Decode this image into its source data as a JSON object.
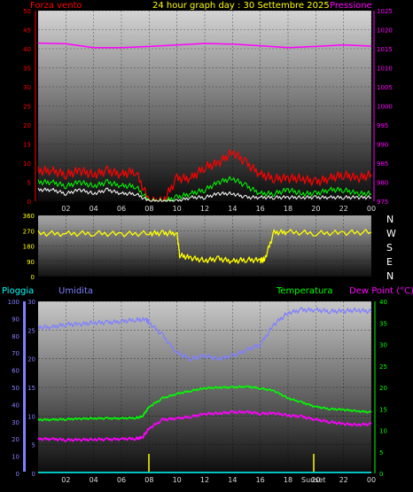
{
  "header": {
    "left_label": "Forza vento",
    "title": "24 hour graph day : 30 Settembre 2025",
    "right_label": "Pressione"
  },
  "direction_letters": [
    "N",
    "W",
    "S",
    "E",
    "N"
  ],
  "lower_header": {
    "rain_label": "Pioggia",
    "humidity_label": "Umidita",
    "temperature_label": "Temperatura",
    "dewpoint_label": "Dew Point (°C)"
  },
  "sunset_label": "Sunset",
  "colors": {
    "wind": "#ff0000",
    "gust_outline": "#00ff00",
    "wind_avg": "#ffffff",
    "pressure": "#ff00ff",
    "direction": "#ffff00",
    "humidity": "#8080ff",
    "temperature": "#00ff00",
    "dewpoint": "#ff00ff",
    "rain": "#00ffff",
    "marker": "#ffff00"
  },
  "chart_data": [
    {
      "type": "line",
      "name": "wind-pressure",
      "x_ticks": [
        "02",
        "04",
        "06",
        "08",
        "10",
        "12",
        "14",
        "16",
        "18",
        "20",
        "22",
        "00"
      ],
      "y_left_ticks": [
        "0",
        "5",
        "10",
        "15",
        "20",
        "25",
        "30",
        "35",
        "40",
        "45",
        "50"
      ],
      "y_left_lim": [
        0,
        50
      ],
      "y_right_ticks": [
        "975",
        "980",
        "985",
        "990",
        "995",
        "1000",
        "1005",
        "1010",
        "1015",
        "1020",
        "1025"
      ],
      "y_right_lim": [
        975,
        1025
      ],
      "x_lim": [
        0,
        24
      ],
      "series": [
        {
          "key": "pressure",
          "x": [
            0,
            2,
            4,
            6,
            8,
            10,
            12,
            14,
            16,
            18,
            20,
            22,
            24
          ],
          "y": [
            1016.5,
            1016.3,
            1015.3,
            1015.3,
            1015.6,
            1016.0,
            1016.4,
            1016.2,
            1015.8,
            1015.3,
            1015.6,
            1016.0,
            1015.7
          ]
        },
        {
          "key": "wind_red",
          "x": [
            0,
            1,
            2,
            3,
            4,
            5,
            6,
            7,
            8,
            9,
            10,
            11,
            12,
            13,
            14,
            15,
            16,
            17,
            18,
            19,
            20,
            21,
            22,
            23,
            24
          ],
          "y": [
            8,
            8,
            7,
            8,
            7,
            8,
            7,
            8,
            0,
            0,
            6,
            6,
            9,
            10,
            13,
            10,
            7,
            6,
            6,
            6,
            5,
            6,
            7,
            6,
            7
          ]
        },
        {
          "key": "wind_green",
          "x": [
            0,
            1,
            2,
            3,
            4,
            5,
            6,
            7,
            8,
            9,
            10,
            11,
            12,
            13,
            14,
            15,
            16,
            17,
            18,
            19,
            20,
            21,
            22,
            23,
            24
          ],
          "y": [
            5,
            5,
            4,
            5,
            4,
            5,
            4,
            4,
            0,
            0,
            1,
            2,
            3,
            5,
            6,
            4,
            2,
            2,
            3,
            2,
            2,
            3,
            3,
            2,
            2
          ]
        },
        {
          "key": "wind_white",
          "x": [
            0,
            1,
            2,
            3,
            4,
            5,
            6,
            7,
            8,
            9,
            10,
            11,
            12,
            13,
            14,
            15,
            16,
            17,
            18,
            19,
            20,
            21,
            22,
            23,
            24
          ],
          "y": [
            3,
            3,
            2,
            3,
            2,
            3,
            2,
            2,
            0,
            0,
            0,
            1,
            1,
            2,
            2,
            1,
            1,
            1,
            1,
            1,
            1,
            1,
            1,
            1,
            1
          ]
        }
      ]
    },
    {
      "type": "line",
      "name": "wind-direction",
      "x_ticks": [],
      "y_ticks": [
        "360",
        "270",
        "180",
        "90",
        "0"
      ],
      "y_lim": [
        0,
        360
      ],
      "x_lim": [
        0,
        24
      ],
      "series": [
        {
          "key": "direction",
          "x": [
            0,
            2,
            4,
            6,
            8,
            9,
            10,
            10.2,
            11,
            12,
            13,
            14,
            15,
            16,
            16.3,
            17,
            18,
            20,
            22,
            24
          ],
          "y": [
            255,
            252,
            255,
            250,
            255,
            255,
            255,
            125,
            110,
            95,
            105,
            90,
            100,
            95,
            100,
            260,
            262,
            255,
            258,
            262
          ]
        }
      ]
    },
    {
      "type": "line",
      "name": "humidity-temperature",
      "x_ticks": [
        "02",
        "04",
        "06",
        "08",
        "10",
        "12",
        "14",
        "16",
        "18",
        "20",
        "22",
        "00"
      ],
      "y_rain_ticks": [
        "0",
        "10",
        "20",
        "30",
        "40",
        "50",
        "60",
        "70",
        "80",
        "90",
        "100"
      ],
      "y_rain_lim": [
        0,
        100
      ],
      "y_hum_ticks": [
        "0",
        "5",
        "10",
        "15",
        "20",
        "25",
        "30"
      ],
      "y_hum_lim": [
        0,
        30
      ],
      "y_temp_ticks": [
        "0",
        "5",
        "10",
        "15",
        "20",
        "25",
        "30",
        "35",
        "40"
      ],
      "y_temp_lim": [
        0,
        40
      ],
      "x_lim": [
        0,
        24
      ],
      "series": [
        {
          "key": "humidity",
          "x": [
            0,
            1,
            2,
            3,
            4,
            5,
            6,
            7,
            7.8,
            8,
            9,
            10,
            11,
            12,
            13,
            14,
            15,
            16,
            17,
            18,
            19,
            20,
            21,
            22,
            23,
            24
          ],
          "y": [
            25.5,
            25.5,
            26,
            26,
            26.3,
            26.3,
            26.5,
            26.8,
            26.8,
            26.3,
            24,
            21,
            20,
            20.5,
            20,
            20.5,
            21.5,
            22.5,
            26,
            28,
            28.5,
            28.5,
            28.3,
            28.3,
            28.5,
            28.2
          ]
        },
        {
          "key": "temperature",
          "x": [
            0,
            1,
            2,
            3,
            4,
            5,
            6,
            7,
            7.5,
            8,
            9,
            10,
            11,
            12,
            13,
            14,
            15,
            16,
            17,
            18,
            19,
            20,
            21,
            22,
            23,
            24
          ],
          "y": [
            12.5,
            12.5,
            12.6,
            12.7,
            12.8,
            12.8,
            12.8,
            12.9,
            13.2,
            15.5,
            17.5,
            18.5,
            19.2,
            19.8,
            20,
            20,
            20.2,
            19.8,
            19.2,
            17.5,
            16.5,
            15.5,
            15,
            14.8,
            14.5,
            14.2
          ]
        },
        {
          "key": "dewpoint",
          "x": [
            0,
            1,
            2,
            3,
            4,
            5,
            6,
            7,
            7.5,
            8,
            9,
            10,
            11,
            12,
            13,
            14,
            15,
            16,
            17,
            18,
            19,
            20,
            21,
            22,
            23,
            24
          ],
          "y": [
            8,
            8,
            7.8,
            7.8,
            7.9,
            7.9,
            8,
            8.1,
            8.3,
            10.5,
            12.5,
            12.8,
            13.2,
            13.8,
            14,
            14.2,
            14.3,
            13.9,
            14,
            13.5,
            13.2,
            12.5,
            12,
            11.5,
            11.3,
            11.5
          ]
        },
        {
          "key": "rain",
          "x": [
            0,
            24
          ],
          "y": [
            0.5,
            0.5
          ]
        }
      ]
    }
  ]
}
